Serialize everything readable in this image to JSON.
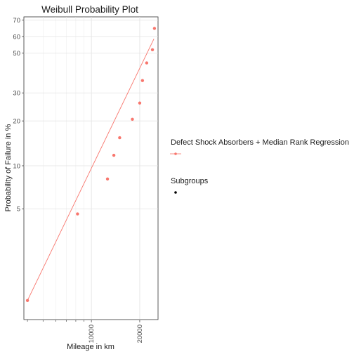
{
  "chart_data": {
    "type": "scatter",
    "title": "Weibull Probability Plot",
    "xlabel": "Mileage in km",
    "ylabel": "Probability of Failure in %",
    "x_scale": "log",
    "y_scale": "weibull",
    "xlim": [
      3800,
      26000
    ],
    "ylim": [
      0.8,
      72
    ],
    "x_ticks": [
      10000,
      20000
    ],
    "x_tick_labels": [
      "10000",
      "20000"
    ],
    "y_ticks": [
      5,
      10,
      20,
      30,
      50,
      60,
      70
    ],
    "y_tick_labels": [
      "5",
      "10",
      "20",
      "30",
      "50",
      "60",
      "70"
    ],
    "grid": true,
    "legend": {
      "placement": "right",
      "groups": [
        {
          "title": "Defect Shock Absorbers + Median Rank Regression",
          "symbol": "line-point",
          "color": "#F8766D"
        },
        {
          "title": "Subgroups",
          "symbol": "point",
          "color": "#000000"
        }
      ]
    },
    "series": [
      {
        "name": "Defect Shock Absorbers",
        "color": "#F8766D",
        "points": [
          {
            "x": 4000,
            "y": 1.1
          },
          {
            "x": 8200,
            "y": 4.6
          },
          {
            "x": 12600,
            "y": 8.1
          },
          {
            "x": 13800,
            "y": 11.8
          },
          {
            "x": 15000,
            "y": 15.5
          },
          {
            "x": 18000,
            "y": 20.5
          },
          {
            "x": 20000,
            "y": 26.0
          },
          {
            "x": 20800,
            "y": 35.5
          },
          {
            "x": 22100,
            "y": 44.5
          },
          {
            "x": 24000,
            "y": 52.0
          },
          {
            "x": 24700,
            "y": 65.0
          }
        ],
        "fit_line": [
          {
            "x": 4000,
            "y": 1.1
          },
          {
            "x": 24500,
            "y": 58.5
          }
        ]
      }
    ]
  }
}
